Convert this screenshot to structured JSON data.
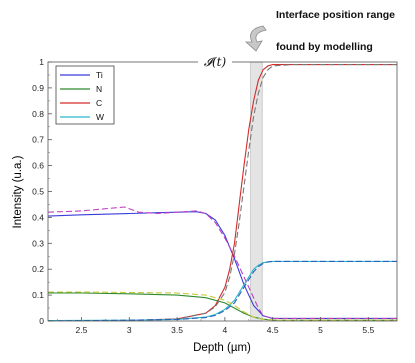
{
  "chart_data": {
    "type": "line",
    "title": "",
    "xlabel": "Depth (µm)",
    "ylabel": "Intensity (u.a.)",
    "xlim": [
      2.15,
      5.8
    ],
    "ylim": [
      0,
      1
    ],
    "x_ticks": [
      2.5,
      3,
      3.5,
      4,
      4.5,
      5,
      5.5
    ],
    "x_tick_labels": [
      "2.5",
      "3",
      "3.5",
      "4",
      "4.5",
      "5",
      "5.5"
    ],
    "y_ticks": [
      0,
      0.1,
      0.2,
      0.3,
      0.4,
      0.5,
      0.6,
      0.7,
      0.8,
      0.9,
      1
    ],
    "y_tick_labels": [
      "0",
      "0.1",
      "0.2",
      "0.3",
      "0.4",
      "0.5",
      "0.6",
      "0.7",
      "0.8",
      "0.9",
      "1"
    ],
    "grid": false,
    "legend_position": "top-left",
    "legend": [
      {
        "name": "Ti",
        "color": "#3b3bdc"
      },
      {
        "name": "N",
        "color": "#2e8b2e"
      },
      {
        "name": "C",
        "color": "#d42a2a"
      },
      {
        "name": "W",
        "color": "#2ab7c9"
      }
    ],
    "series": [
      {
        "name": "Ti",
        "color": "#3b3bdc",
        "style": "solid",
        "x": [
          2.15,
          2.5,
          3.0,
          3.3,
          3.5,
          3.7,
          3.8,
          3.9,
          4.0,
          4.1,
          4.2,
          4.3,
          4.4,
          4.5,
          5.0,
          5.8
        ],
        "y": [
          0.405,
          0.41,
          0.415,
          0.418,
          0.42,
          0.422,
          0.415,
          0.39,
          0.33,
          0.24,
          0.14,
          0.06,
          0.02,
          0.01,
          0.01,
          0.01
        ]
      },
      {
        "name": "N",
        "color": "#2e8b2e",
        "style": "solid",
        "x": [
          2.15,
          2.5,
          3.0,
          3.5,
          3.8,
          4.0,
          4.1,
          4.2,
          4.3,
          4.4,
          4.5,
          5.0,
          5.8
        ],
        "y": [
          0.108,
          0.108,
          0.105,
          0.1,
          0.09,
          0.07,
          0.05,
          0.03,
          0.015,
          0.007,
          0.004,
          0.003,
          0.003
        ]
      },
      {
        "name": "C",
        "color": "#d42a2a",
        "style": "solid",
        "x": [
          2.15,
          3.0,
          3.5,
          3.8,
          3.9,
          4.0,
          4.05,
          4.1,
          4.15,
          4.2,
          4.25,
          4.3,
          4.35,
          4.4,
          4.45,
          4.5,
          4.7,
          5.0,
          5.8
        ],
        "y": [
          0.0,
          0.002,
          0.008,
          0.03,
          0.06,
          0.13,
          0.2,
          0.3,
          0.45,
          0.6,
          0.74,
          0.85,
          0.93,
          0.97,
          0.985,
          0.99,
          0.99,
          0.99,
          0.99
        ]
      },
      {
        "name": "W",
        "color": "#2ab7c9",
        "style": "solid",
        "x": [
          2.15,
          3.0,
          3.5,
          3.8,
          3.9,
          4.0,
          4.1,
          4.15,
          4.2,
          4.25,
          4.3,
          4.35,
          4.4,
          4.45,
          4.5,
          4.7,
          5.0,
          5.8
        ],
        "y": [
          0.002,
          0.003,
          0.006,
          0.015,
          0.025,
          0.045,
          0.08,
          0.11,
          0.14,
          0.17,
          0.2,
          0.215,
          0.225,
          0.228,
          0.23,
          0.23,
          0.23,
          0.23
        ]
      },
      {
        "name": "",
        "color": "#c040c0",
        "style": "dashed",
        "x": [
          2.15,
          2.5,
          2.8,
          2.95,
          3.1,
          3.3,
          3.5,
          3.7,
          3.8,
          3.9,
          4.0,
          4.1,
          4.2,
          4.25,
          4.3,
          4.35,
          4.4,
          4.5,
          5.0,
          5.8
        ],
        "y": [
          0.42,
          0.425,
          0.435,
          0.44,
          0.42,
          0.415,
          0.42,
          0.425,
          0.415,
          0.38,
          0.32,
          0.25,
          0.17,
          0.13,
          0.09,
          0.05,
          0.02,
          0.01,
          0.01,
          0.01
        ]
      },
      {
        "name": "",
        "color": "#c8c83a",
        "style": "dashed",
        "x": [
          2.15,
          2.5,
          3.0,
          3.5,
          3.8,
          4.0,
          4.1,
          4.2,
          4.3,
          4.4,
          4.5,
          5.0,
          5.8
        ],
        "y": [
          0.112,
          0.112,
          0.11,
          0.108,
          0.1,
          0.08,
          0.06,
          0.035,
          0.015,
          0.006,
          0.004,
          0.003,
          0.003
        ]
      },
      {
        "name": "",
        "color": "#777777",
        "style": "dashed",
        "x": [
          2.15,
          3.0,
          3.5,
          3.8,
          3.9,
          4.0,
          4.05,
          4.1,
          4.15,
          4.2,
          4.25,
          4.3,
          4.35,
          4.4,
          4.45,
          4.5,
          4.7,
          5.0,
          5.8
        ],
        "y": [
          0.0,
          0.002,
          0.008,
          0.03,
          0.055,
          0.11,
          0.17,
          0.26,
          0.38,
          0.52,
          0.66,
          0.79,
          0.88,
          0.94,
          0.97,
          0.985,
          0.99,
          0.99,
          0.99
        ]
      },
      {
        "name": "",
        "color": "#2a5fbf",
        "style": "dashed",
        "x": [
          2.15,
          3.0,
          3.5,
          3.8,
          3.9,
          4.0,
          4.1,
          4.15,
          4.2,
          4.25,
          4.3,
          4.35,
          4.4,
          4.45,
          4.5,
          4.7,
          5.0,
          5.8
        ],
        "y": [
          0.0,
          0.003,
          0.006,
          0.013,
          0.022,
          0.04,
          0.07,
          0.1,
          0.13,
          0.16,
          0.19,
          0.21,
          0.222,
          0.228,
          0.23,
          0.23,
          0.23,
          0.23
        ]
      }
    ],
    "interface_band": {
      "x_start": 4.27,
      "x_end": 4.39
    },
    "annotations": {
      "interface_symbol": "𝓘(t)",
      "line1": "Interface position range",
      "line2": "found by modelling"
    }
  }
}
